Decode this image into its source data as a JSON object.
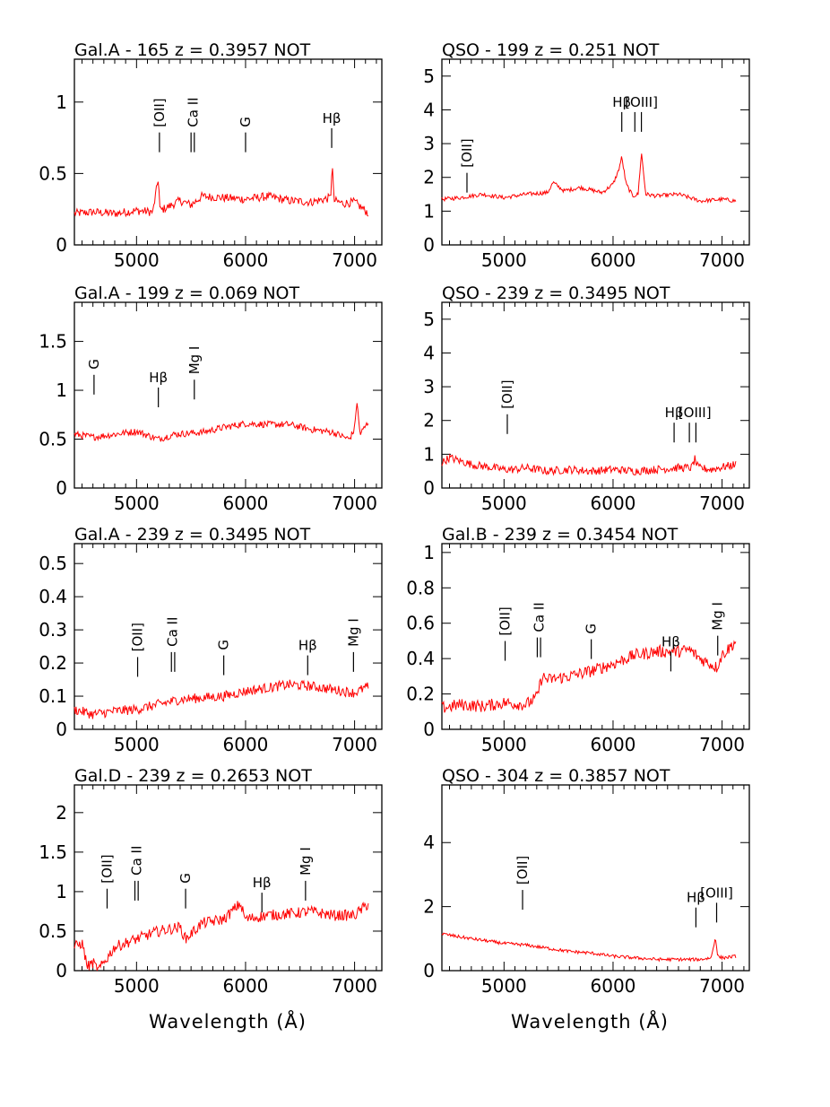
{
  "figure": {
    "xlabel": "Wavelength (Å)",
    "spectrum_color": "#ff0000"
  },
  "chart_data": [
    {
      "type": "line",
      "title": "Gal.A -  165    z = 0.3957 NOT",
      "xlim": [
        4430,
        7250
      ],
      "ylim": [
        0,
        1.3
      ],
      "xticks": [
        5000,
        6000,
        7000
      ],
      "yticks": [
        0,
        0.5,
        1
      ],
      "ytick_labels": [
        "0",
        "0.5",
        "1"
      ],
      "series": [
        {
          "x": [
            4430,
            4600,
            4800,
            5000,
            5150,
            5200,
            5215,
            5300,
            5400,
            5500,
            5600,
            5800,
            6000,
            6200,
            6400,
            6600,
            6780,
            6795,
            6810,
            6900,
            7000,
            7130
          ],
          "y": [
            0.22,
            0.23,
            0.22,
            0.24,
            0.23,
            0.47,
            0.24,
            0.27,
            0.31,
            0.28,
            0.34,
            0.33,
            0.32,
            0.34,
            0.31,
            0.3,
            0.33,
            0.58,
            0.31,
            0.29,
            0.3,
            0.22
          ],
          "noise": 0.03
        }
      ],
      "annotations": [
        {
          "label": "[OII]",
          "x": 5210,
          "y": 0.85,
          "rotated": true,
          "ticks": [
            5210
          ]
        },
        {
          "label": "Ca II",
          "x": 5520,
          "y": 0.85,
          "rotated": true,
          "ticks": [
            5500,
            5530
          ]
        },
        {
          "label": "G",
          "x": 6000,
          "y": 0.85,
          "rotated": true,
          "ticks": [
            6000
          ]
        },
        {
          "label": "Hβ",
          "x": 6790,
          "y": 0.88,
          "rotated": false,
          "ticks": [
            6790
          ]
        }
      ]
    },
    {
      "type": "line",
      "title": "QSO -  199    z = 0.251 NOT",
      "xlim": [
        4430,
        7250
      ],
      "ylim": [
        0,
        5.5
      ],
      "xticks": [
        5000,
        6000,
        7000
      ],
      "yticks": [
        0,
        1,
        2,
        3,
        4,
        5
      ],
      "ytick_labels": [
        "0",
        "1",
        "2",
        "3",
        "4",
        "5"
      ],
      "series": [
        {
          "x": [
            4430,
            4600,
            4700,
            4800,
            5000,
            5200,
            5400,
            5450,
            5550,
            5700,
            5900,
            6000,
            6050,
            6080,
            6120,
            6180,
            6230,
            6260,
            6300,
            6400,
            6600,
            6800,
            7000,
            7130
          ],
          "y": [
            1.35,
            1.4,
            1.45,
            1.5,
            1.4,
            1.5,
            1.55,
            1.85,
            1.6,
            1.7,
            1.55,
            1.8,
            2.2,
            2.6,
            1.8,
            1.45,
            1.5,
            2.75,
            1.5,
            1.45,
            1.5,
            1.3,
            1.35,
            1.3
          ],
          "noise": 0.06
        }
      ],
      "annotations": [
        {
          "label": "[OII]",
          "x": 4660,
          "y": 2.4,
          "rotated": true,
          "ticks": [
            4660
          ]
        },
        {
          "label": "Hβ",
          "x": 6080,
          "y": 4.2,
          "rotated": false,
          "ticks": [
            6080
          ]
        },
        {
          "label": "[OIII]",
          "x": 6260,
          "y": 4.2,
          "rotated": false,
          "ticks": [
            6200,
            6260
          ]
        }
      ]
    },
    {
      "type": "line",
      "title": "Gal.A -  199    z = 0.069 NOT",
      "xlim": [
        4430,
        7250
      ],
      "ylim": [
        0,
        1.9
      ],
      "xticks": [
        5000,
        6000,
        7000
      ],
      "yticks": [
        0,
        0.5,
        1,
        1.5
      ],
      "ytick_labels": [
        "0",
        "0.5",
        "1",
        "1.5"
      ],
      "series": [
        {
          "x": [
            4430,
            4600,
            4800,
            5000,
            5200,
            5350,
            5600,
            5800,
            6000,
            6200,
            6400,
            6600,
            6800,
            6950,
            7000,
            7020,
            7050,
            7130
          ],
          "y": [
            0.55,
            0.52,
            0.55,
            0.58,
            0.5,
            0.55,
            0.57,
            0.62,
            0.66,
            0.65,
            0.65,
            0.6,
            0.57,
            0.5,
            0.6,
            0.9,
            0.55,
            0.68
          ],
          "noise": 0.035
        }
      ],
      "annotations": [
        {
          "label": "G",
          "x": 4610,
          "y": 1.25,
          "rotated": true,
          "ticks": [
            4610
          ]
        },
        {
          "label": "Hβ",
          "x": 5200,
          "y": 1.12,
          "rotated": false,
          "ticks": [
            5200
          ]
        },
        {
          "label": "Mg I",
          "x": 5530,
          "y": 1.2,
          "rotated": true,
          "ticks": [
            5530
          ]
        }
      ]
    },
    {
      "type": "line",
      "title": "QSO -  239    z = 0.3495 NOT",
      "xlim": [
        4430,
        7250
      ],
      "ylim": [
        0,
        5.5
      ],
      "xticks": [
        5000,
        6000,
        7000
      ],
      "yticks": [
        0,
        1,
        2,
        3,
        4,
        5
      ],
      "ytick_labels": [
        "0",
        "1",
        "2",
        "3",
        "4",
        "5"
      ],
      "series": [
        {
          "x": [
            4430,
            4500,
            4700,
            4900,
            5000,
            5100,
            5200,
            5400,
            5600,
            5800,
            6000,
            6200,
            6400,
            6600,
            6720,
            6750,
            6780,
            6900,
            7130
          ],
          "y": [
            0.75,
            0.9,
            0.7,
            0.6,
            0.55,
            0.55,
            0.6,
            0.5,
            0.55,
            0.5,
            0.55,
            0.5,
            0.55,
            0.6,
            0.6,
            0.85,
            0.6,
            0.55,
            0.7
          ],
          "noise": 0.12
        }
      ],
      "annotations": [
        {
          "label": "[OII]",
          "x": 5030,
          "y": 2.45,
          "rotated": true,
          "ticks": [
            5030
          ]
        },
        {
          "label": "Hβ",
          "x": 6560,
          "y": 2.2,
          "rotated": false,
          "ticks": [
            6560
          ]
        },
        {
          "label": "[OIII]",
          "x": 6750,
          "y": 2.2,
          "rotated": false,
          "ticks": [
            6700,
            6760
          ]
        }
      ]
    },
    {
      "type": "line",
      "title": "Gal.A -  239    z = 0.3495 NOT",
      "xlim": [
        4430,
        7250
      ],
      "ylim": [
        0,
        0.56
      ],
      "xticks": [
        5000,
        6000,
        7000
      ],
      "yticks": [
        0,
        0.1,
        0.2,
        0.3,
        0.4,
        0.5
      ],
      "ytick_labels": [
        "0",
        "0.1",
        "0.2",
        "0.3",
        "0.4",
        "0.5"
      ],
      "series": [
        {
          "x": [
            4430,
            4600,
            4800,
            5000,
            5200,
            5400,
            5600,
            5800,
            6000,
            6200,
            6400,
            6600,
            6800,
            7000,
            7130
          ],
          "y": [
            0.06,
            0.045,
            0.055,
            0.06,
            0.075,
            0.09,
            0.095,
            0.1,
            0.115,
            0.125,
            0.135,
            0.13,
            0.12,
            0.11,
            0.13
          ],
          "noise": 0.015
        }
      ],
      "annotations": [
        {
          "label": "[OII]",
          "x": 5010,
          "y": 0.245,
          "rotated": true,
          "ticks": [
            5010
          ]
        },
        {
          "label": "Ca II",
          "x": 5330,
          "y": 0.26,
          "rotated": true,
          "ticks": [
            5320,
            5350
          ]
        },
        {
          "label": "G",
          "x": 5800,
          "y": 0.25,
          "rotated": true,
          "ticks": [
            5800
          ]
        },
        {
          "label": "Hβ",
          "x": 6570,
          "y": 0.25,
          "rotated": false,
          "ticks": [
            6570
          ]
        },
        {
          "label": "Mg I",
          "x": 6990,
          "y": 0.26,
          "rotated": true,
          "ticks": [
            6990
          ]
        }
      ]
    },
    {
      "type": "line",
      "title": "Gal.B -  239    z = 0.3454 NOT",
      "xlim": [
        4430,
        7250
      ],
      "ylim": [
        0,
        1.05
      ],
      "xticks": [
        5000,
        6000,
        7000
      ],
      "yticks": [
        0,
        0.2,
        0.4,
        0.6,
        0.8,
        1
      ],
      "ytick_labels": [
        "0",
        "0.2",
        "0.4",
        "0.6",
        "0.8",
        "1"
      ],
      "series": [
        {
          "x": [
            4430,
            4600,
            4800,
            5000,
            5200,
            5300,
            5350,
            5400,
            5600,
            5800,
            6000,
            6200,
            6400,
            6600,
            6700,
            6800,
            6950,
            7000,
            7130
          ],
          "y": [
            0.12,
            0.14,
            0.13,
            0.15,
            0.14,
            0.18,
            0.3,
            0.28,
            0.3,
            0.33,
            0.37,
            0.42,
            0.44,
            0.44,
            0.45,
            0.4,
            0.35,
            0.42,
            0.5
          ],
          "noise": 0.035
        }
      ],
      "annotations": [
        {
          "label": "[OII]",
          "x": 5010,
          "y": 0.55,
          "rotated": true,
          "ticks": [
            5010
          ]
        },
        {
          "label": "Ca II",
          "x": 5320,
          "y": 0.57,
          "rotated": true,
          "ticks": [
            5305,
            5335
          ]
        },
        {
          "label": "G",
          "x": 5800,
          "y": 0.56,
          "rotated": true,
          "ticks": [
            5800
          ]
        },
        {
          "label": "Hβ",
          "x": 6530,
          "y": 0.49,
          "rotated": false,
          "ticks": [
            6530
          ]
        },
        {
          "label": "Mg I",
          "x": 6960,
          "y": 0.58,
          "rotated": true,
          "ticks": [
            6960
          ]
        }
      ]
    },
    {
      "type": "line",
      "title": "Gal.D -  239    z = 0.2653 NOT",
      "xlim": [
        4430,
        7250
      ],
      "ylim": [
        0,
        2.35
      ],
      "xticks": [
        5000,
        6000,
        7000
      ],
      "yticks": [
        0,
        0.5,
        1,
        1.5,
        2
      ],
      "ytick_labels": [
        "0",
        "0.5",
        "1",
        "1.5",
        "2"
      ],
      "series": [
        {
          "x": [
            4430,
            4500,
            4550,
            4600,
            4650,
            4800,
            5000,
            5200,
            5400,
            5450,
            5600,
            5800,
            5950,
            6000,
            6200,
            6400,
            6600,
            6800,
            7000,
            7130
          ],
          "y": [
            0.3,
            0.35,
            0.05,
            0.1,
            0.0,
            0.3,
            0.4,
            0.5,
            0.55,
            0.4,
            0.6,
            0.65,
            0.85,
            0.65,
            0.7,
            0.72,
            0.75,
            0.7,
            0.7,
            0.85
          ],
          "noise": 0.07
        }
      ],
      "annotations": [
        {
          "label": "[OII]",
          "x": 4730,
          "y": 1.15,
          "rotated": true,
          "ticks": [
            4730
          ]
        },
        {
          "label": "Ca II",
          "x": 5000,
          "y": 1.25,
          "rotated": true,
          "ticks": [
            4985,
            5015
          ]
        },
        {
          "label": "G",
          "x": 5450,
          "y": 1.15,
          "rotated": true,
          "ticks": [
            5450
          ]
        },
        {
          "label": "Hβ",
          "x": 6150,
          "y": 1.1,
          "rotated": false,
          "ticks": [
            6150
          ]
        },
        {
          "label": "Mg I",
          "x": 6550,
          "y": 1.25,
          "rotated": true,
          "ticks": [
            6550
          ]
        }
      ]
    },
    {
      "type": "line",
      "title": "QSO -  304    z = 0.3857 NOT",
      "xlim": [
        4430,
        7250
      ],
      "ylim": [
        0,
        5.8
      ],
      "xticks": [
        5000,
        6000,
        7000
      ],
      "yticks": [
        0,
        2,
        4
      ],
      "ytick_labels": [
        "0",
        "2",
        "4"
      ],
      "series": [
        {
          "x": [
            4430,
            4600,
            4800,
            5000,
            5200,
            5400,
            5600,
            5800,
            6000,
            6200,
            6400,
            6600,
            6800,
            6900,
            6940,
            6960,
            7000,
            7130
          ],
          "y": [
            1.15,
            1.05,
            0.95,
            0.85,
            0.8,
            0.7,
            0.6,
            0.55,
            0.45,
            0.4,
            0.35,
            0.35,
            0.35,
            0.4,
            1.05,
            0.45,
            0.4,
            0.45
          ],
          "noise": 0.05
        }
      ],
      "annotations": [
        {
          "label": "[OII]",
          "x": 5170,
          "y": 2.8,
          "rotated": true,
          "ticks": [
            5170
          ]
        },
        {
          "label": "Hβ",
          "x": 6760,
          "y": 2.25,
          "rotated": false,
          "ticks": [
            6760
          ]
        },
        {
          "label": "[OIII]",
          "x": 6950,
          "y": 2.4,
          "rotated": false,
          "ticks": [
            6950
          ]
        }
      ]
    }
  ]
}
